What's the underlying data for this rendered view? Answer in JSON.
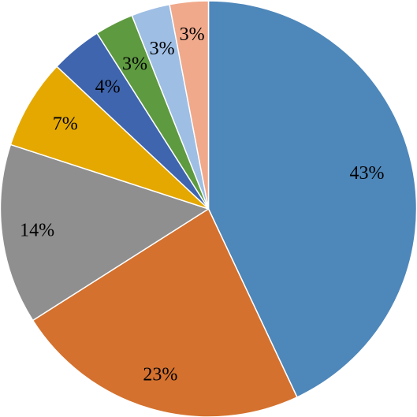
{
  "chart_data": {
    "type": "pie",
    "start_angle_deg": 0,
    "direction": "clockwise",
    "slices": [
      {
        "value": 43,
        "label": "43%",
        "color": "#4E87BA"
      },
      {
        "value": 23,
        "label": "23%",
        "color": "#D4712E"
      },
      {
        "value": 14,
        "label": "14%",
        "color": "#8F8F8F"
      },
      {
        "value": 7,
        "label": "7%",
        "color": "#E4A800"
      },
      {
        "value": 4,
        "label": "4%",
        "color": "#3F65AE"
      },
      {
        "value": 3,
        "label": "3%",
        "color": "#5E9A40"
      },
      {
        "value": 3,
        "label": "3%",
        "color": "#9EBEE4"
      },
      {
        "value": 3,
        "label": "3%",
        "color": "#F0A98B"
      }
    ]
  }
}
